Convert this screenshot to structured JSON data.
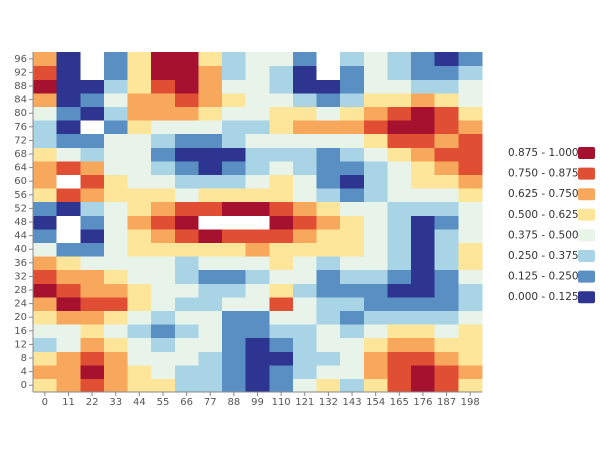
{
  "chart_data": {
    "type": "heatmap",
    "x": [
      0,
      11,
      22,
      33,
      44,
      55,
      66,
      77,
      88,
      99,
      110,
      121,
      132,
      143,
      154,
      165,
      176,
      187,
      198
    ],
    "y": [
      0,
      4,
      8,
      12,
      16,
      20,
      24,
      28,
      32,
      36,
      40,
      44,
      48,
      52,
      56,
      60,
      64,
      68,
      72,
      76,
      80,
      84,
      88,
      92,
      96
    ],
    "z": [
      [
        0.56,
        0.69,
        0.81,
        0.69,
        0.56,
        0.56,
        0.31,
        0.31,
        0.19,
        0.06,
        0.19,
        0.44,
        0.56,
        0.31,
        0.56,
        0.81,
        0.94,
        0.81,
        0.56
      ],
      [
        0.69,
        0.69,
        0.94,
        0.69,
        0.56,
        0.44,
        0.31,
        0.31,
        0.19,
        0.06,
        0.19,
        0.31,
        0.44,
        0.44,
        0.69,
        0.81,
        0.94,
        0.81,
        0.69
      ],
      [
        0.56,
        0.69,
        0.81,
        0.69,
        0.44,
        0.44,
        0.44,
        0.31,
        0.19,
        0.06,
        0.06,
        0.31,
        0.31,
        0.44,
        0.69,
        0.81,
        0.81,
        0.69,
        0.56
      ],
      [
        0.31,
        0.44,
        0.69,
        0.56,
        0.44,
        0.31,
        0.44,
        0.44,
        0.19,
        0.06,
        0.19,
        0.31,
        0.44,
        0.44,
        0.56,
        0.69,
        0.69,
        0.56,
        0.56
      ],
      [
        0.44,
        0.44,
        0.56,
        0.44,
        0.31,
        0.19,
        0.31,
        0.44,
        0.19,
        0.19,
        0.31,
        0.31,
        0.44,
        0.31,
        0.44,
        0.56,
        0.56,
        0.44,
        0.56
      ],
      [
        0.56,
        0.69,
        0.69,
        0.56,
        0.44,
        0.31,
        0.44,
        0.44,
        0.19,
        0.19,
        0.44,
        0.44,
        0.31,
        0.19,
        0.31,
        0.31,
        0.31,
        0.31,
        0.44
      ],
      [
        0.69,
        0.94,
        0.81,
        0.81,
        0.56,
        0.44,
        0.31,
        0.31,
        0.44,
        0.44,
        0.81,
        0.44,
        0.31,
        0.31,
        0.19,
        0.19,
        0.19,
        0.19,
        0.31
      ],
      [
        0.94,
        0.81,
        0.69,
        0.69,
        0.56,
        0.44,
        0.44,
        0.31,
        0.31,
        0.44,
        0.56,
        0.31,
        0.19,
        0.19,
        0.19,
        0.06,
        0.06,
        0.19,
        0.31
      ],
      [
        0.81,
        0.69,
        0.69,
        0.56,
        0.44,
        0.44,
        0.31,
        0.19,
        0.19,
        0.31,
        0.44,
        0.44,
        0.19,
        0.31,
        0.31,
        0.19,
        0.06,
        0.19,
        0.44
      ],
      [
        0.69,
        0.56,
        0.44,
        0.44,
        0.44,
        0.44,
        0.31,
        0.44,
        0.44,
        0.44,
        0.56,
        0.44,
        0.31,
        0.44,
        0.44,
        0.31,
        0.06,
        0.31,
        0.56
      ],
      [
        0.44,
        0.19,
        0.19,
        0.44,
        0.56,
        0.56,
        0.56,
        0.56,
        0.56,
        0.69,
        0.56,
        0.56,
        0.56,
        0.56,
        0.44,
        0.31,
        0.06,
        0.31,
        0.56
      ],
      [
        0.19,
        1.05,
        0.06,
        0.44,
        0.56,
        0.69,
        0.81,
        0.94,
        0.81,
        0.81,
        0.81,
        0.69,
        0.56,
        0.56,
        0.44,
        0.31,
        0.06,
        0.31,
        0.44
      ],
      [
        0.06,
        1.05,
        0.19,
        0.44,
        0.69,
        0.81,
        0.94,
        1.05,
        1.05,
        1.05,
        0.94,
        0.81,
        0.69,
        0.56,
        0.44,
        0.31,
        0.06,
        0.19,
        0.44
      ],
      [
        0.19,
        0.06,
        0.31,
        0.44,
        0.56,
        0.69,
        0.81,
        0.81,
        0.94,
        0.94,
        0.81,
        0.69,
        0.56,
        0.44,
        0.44,
        0.31,
        0.31,
        0.31,
        0.44
      ],
      [
        0.56,
        0.81,
        0.69,
        0.56,
        0.56,
        0.56,
        0.44,
        0.56,
        0.56,
        0.56,
        0.56,
        0.44,
        0.31,
        0.19,
        0.31,
        0.44,
        0.44,
        0.44,
        0.56
      ],
      [
        0.69,
        1.05,
        0.81,
        0.56,
        0.44,
        0.44,
        0.31,
        0.31,
        0.31,
        0.44,
        0.56,
        0.44,
        0.19,
        0.06,
        0.31,
        0.44,
        0.56,
        0.56,
        0.69
      ],
      [
        0.69,
        0.81,
        0.69,
        0.44,
        0.44,
        0.31,
        0.19,
        0.06,
        0.19,
        0.31,
        0.44,
        0.31,
        0.19,
        0.19,
        0.31,
        0.44,
        0.56,
        0.69,
        0.81
      ],
      [
        0.56,
        0.44,
        0.31,
        0.44,
        0.44,
        0.19,
        0.06,
        0.06,
        0.06,
        0.31,
        0.31,
        0.31,
        0.19,
        0.31,
        0.44,
        0.56,
        0.69,
        0.81,
        0.81
      ],
      [
        0.31,
        0.19,
        0.19,
        0.44,
        0.44,
        0.31,
        0.19,
        0.19,
        0.31,
        0.44,
        0.44,
        0.44,
        0.44,
        0.44,
        0.56,
        0.81,
        0.81,
        0.69,
        0.81
      ],
      [
        0.31,
        0.06,
        1.05,
        0.19,
        0.56,
        0.44,
        0.44,
        0.44,
        0.31,
        0.31,
        0.56,
        0.69,
        0.69,
        0.69,
        0.81,
        0.94,
        0.94,
        0.81,
        0.69
      ],
      [
        0.44,
        0.19,
        0.06,
        0.31,
        0.69,
        0.69,
        0.69,
        0.56,
        0.44,
        0.44,
        0.56,
        0.56,
        0.44,
        0.56,
        0.69,
        0.81,
        0.94,
        0.81,
        0.56
      ],
      [
        0.69,
        0.06,
        0.19,
        0.44,
        0.69,
        0.69,
        0.81,
        0.69,
        0.56,
        0.44,
        0.44,
        0.31,
        0.19,
        0.31,
        0.56,
        0.56,
        0.69,
        0.56,
        0.44
      ],
      [
        0.94,
        0.06,
        0.06,
        0.31,
        0.56,
        0.81,
        0.94,
        0.69,
        0.44,
        0.44,
        0.31,
        0.06,
        0.06,
        0.19,
        0.44,
        0.44,
        0.31,
        0.31,
        0.44
      ],
      [
        0.81,
        0.06,
        1.05,
        0.19,
        0.56,
        0.94,
        0.94,
        0.69,
        0.31,
        0.44,
        0.31,
        0.06,
        1.05,
        0.19,
        0.44,
        0.31,
        0.19,
        0.19,
        0.31
      ],
      [
        0.69,
        0.06,
        1.05,
        0.19,
        0.56,
        0.94,
        0.94,
        0.56,
        0.31,
        0.44,
        0.44,
        0.19,
        1.05,
        0.31,
        0.44,
        0.31,
        0.19,
        0.06,
        0.19
      ]
    ],
    "scale": [
      {
        "label": "0.875 - 1.000",
        "min": 0.875,
        "max": 1.0,
        "color": "#a6112f"
      },
      {
        "label": "0.750 - 0.875",
        "min": 0.75,
        "max": 0.875,
        "color": "#e04f33"
      },
      {
        "label": "0.625 - 0.750",
        "min": 0.625,
        "max": 0.75,
        "color": "#f7a85c"
      },
      {
        "label": "0.500 - 0.625",
        "min": 0.5,
        "max": 0.625,
        "color": "#fde69a"
      },
      {
        "label": "0.375 - 0.500",
        "min": 0.375,
        "max": 0.5,
        "color": "#e8f3ea"
      },
      {
        "label": "0.250 - 0.375",
        "min": 0.25,
        "max": 0.375,
        "color": "#a9d4e6"
      },
      {
        "label": "0.125 - 0.250",
        "min": 0.125,
        "max": 0.25,
        "color": "#5a8fc4"
      },
      {
        "label": "0.000 - 0.125",
        "min": 0.0,
        "max": 0.125,
        "color": "#2d3590"
      }
    ]
  }
}
